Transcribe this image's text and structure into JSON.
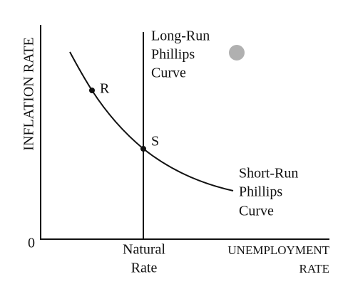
{
  "axes": {
    "y_label": "INFLATION RATE",
    "origin": "0",
    "x_label": [
      "UNEMPLOYMENT",
      "RATE"
    ]
  },
  "marker": {
    "label": [
      "Natural",
      "Rate"
    ]
  },
  "curves": [
    {
      "label": [
        "Long-Run",
        "Phillips",
        "Curve"
      ]
    },
    {
      "label": [
        "Short-Run",
        "Phillips",
        "Curve"
      ]
    }
  ],
  "points": [
    {
      "label": "R"
    },
    {
      "label": "S"
    }
  ]
}
